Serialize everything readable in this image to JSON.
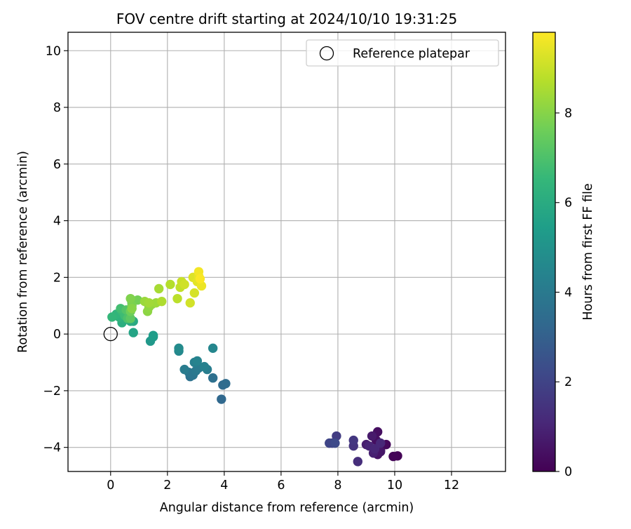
{
  "chart_data": {
    "type": "scatter",
    "title": "FOV centre drift starting at 2024/10/10 19:31:25",
    "xlabel": "Angular distance from reference (arcmin)",
    "ylabel": "Rotation from reference (arcmin)",
    "xlim": [
      -1.5,
      13.9
    ],
    "ylim": [
      -4.85,
      10.65
    ],
    "xticks": [
      "0",
      "2",
      "4",
      "6",
      "8",
      "10",
      "12"
    ],
    "xtick_values": [
      0,
      2,
      4,
      6,
      8,
      10,
      12
    ],
    "yticks": [
      "−4",
      "−2",
      "0",
      "2",
      "4",
      "6",
      "8",
      "10"
    ],
    "ytick_values": [
      -4,
      -2,
      0,
      2,
      4,
      6,
      8,
      10
    ],
    "grid": true,
    "legend": {
      "position": "top-right",
      "label": "Reference platepar"
    },
    "reference_point": {
      "x": 0,
      "y": 0
    },
    "colorbar": {
      "label": "Hours from first FF file",
      "range": [
        0,
        9.8
      ],
      "ticks": [
        "0",
        "2",
        "4",
        "6",
        "8"
      ],
      "tick_values": [
        0,
        2,
        4,
        6,
        8
      ],
      "colormap": [
        "#440154",
        "#482878",
        "#3e4989",
        "#31688e",
        "#26828e",
        "#1f9e89",
        "#35b779",
        "#6ece58",
        "#b5de2b",
        "#fde725"
      ]
    },
    "points": [
      {
        "x": 10.1,
        "y": -4.3,
        "c": 0.05
      },
      {
        "x": 9.95,
        "y": -4.32,
        "c": 0.1
      },
      {
        "x": 9.7,
        "y": -3.9,
        "c": 0.2
      },
      {
        "x": 9.5,
        "y": -4.1,
        "c": 0.3
      },
      {
        "x": 9.4,
        "y": -3.45,
        "c": 0.35
      },
      {
        "x": 9.35,
        "y": -3.75,
        "c": 0.4
      },
      {
        "x": 9.4,
        "y": -4.25,
        "c": 0.5
      },
      {
        "x": 9.5,
        "y": -4.15,
        "c": 0.6
      },
      {
        "x": 9.2,
        "y": -3.6,
        "c": 0.7
      },
      {
        "x": 9.0,
        "y": -3.9,
        "c": 0.8
      },
      {
        "x": 9.25,
        "y": -4.2,
        "c": 0.9
      },
      {
        "x": 9.1,
        "y": -3.95,
        "c": 1.0
      },
      {
        "x": 9.3,
        "y": -4.05,
        "c": 1.05
      },
      {
        "x": 9.5,
        "y": -3.85,
        "c": 1.1
      },
      {
        "x": 8.7,
        "y": -4.5,
        "c": 1.3
      },
      {
        "x": 8.55,
        "y": -3.95,
        "c": 1.5
      },
      {
        "x": 8.55,
        "y": -3.75,
        "c": 1.6
      },
      {
        "x": 7.95,
        "y": -3.6,
        "c": 1.75
      },
      {
        "x": 7.8,
        "y": -3.85,
        "c": 1.9
      },
      {
        "x": 7.7,
        "y": -3.85,
        "c": 2.05
      },
      {
        "x": 7.9,
        "y": -3.85,
        "c": 2.2
      },
      {
        "x": 3.9,
        "y": -2.3,
        "c": 3.3
      },
      {
        "x": 3.95,
        "y": -1.8,
        "c": 3.4
      },
      {
        "x": 4.05,
        "y": -1.75,
        "c": 3.45
      },
      {
        "x": 3.6,
        "y": -1.55,
        "c": 3.6
      },
      {
        "x": 2.8,
        "y": -1.5,
        "c": 3.7
      },
      {
        "x": 2.9,
        "y": -1.45,
        "c": 3.8
      },
      {
        "x": 2.75,
        "y": -1.35,
        "c": 3.85
      },
      {
        "x": 3.0,
        "y": -1.3,
        "c": 3.95
      },
      {
        "x": 3.1,
        "y": -1.2,
        "c": 4.0
      },
      {
        "x": 2.6,
        "y": -1.25,
        "c": 4.1
      },
      {
        "x": 3.4,
        "y": -1.25,
        "c": 4.15
      },
      {
        "x": 2.95,
        "y": -1.0,
        "c": 4.25
      },
      {
        "x": 3.3,
        "y": -1.15,
        "c": 4.3
      },
      {
        "x": 3.05,
        "y": -0.95,
        "c": 4.4
      },
      {
        "x": 3.6,
        "y": -0.5,
        "c": 4.5
      },
      {
        "x": 2.4,
        "y": -0.6,
        "c": 4.6
      },
      {
        "x": 2.4,
        "y": -0.5,
        "c": 4.7
      },
      {
        "x": 1.4,
        "y": -0.25,
        "c": 5.2
      },
      {
        "x": 1.5,
        "y": -0.1,
        "c": 5.3
      },
      {
        "x": 1.5,
        "y": -0.05,
        "c": 5.4
      },
      {
        "x": 0.8,
        "y": 0.05,
        "c": 5.7
      },
      {
        "x": 0.8,
        "y": 0.45,
        "c": 5.9
      },
      {
        "x": 0.7,
        "y": 0.45,
        "c": 6.0
      },
      {
        "x": 0.4,
        "y": 0.4,
        "c": 6.1
      },
      {
        "x": 0.45,
        "y": 0.55,
        "c": 6.2
      },
      {
        "x": 0.3,
        "y": 0.6,
        "c": 6.3
      },
      {
        "x": 0.2,
        "y": 0.7,
        "c": 6.4
      },
      {
        "x": 0.05,
        "y": 0.6,
        "c": 6.5
      },
      {
        "x": 0.4,
        "y": 0.8,
        "c": 6.6
      },
      {
        "x": 0.5,
        "y": 0.65,
        "c": 6.7
      },
      {
        "x": 0.35,
        "y": 0.9,
        "c": 6.8
      },
      {
        "x": 0.6,
        "y": 0.55,
        "c": 7.0
      },
      {
        "x": 0.55,
        "y": 0.85,
        "c": 7.1
      },
      {
        "x": 0.7,
        "y": 0.55,
        "c": 7.3
      },
      {
        "x": 0.75,
        "y": 1.1,
        "c": 7.5
      },
      {
        "x": 0.7,
        "y": 0.8,
        "c": 7.6
      },
      {
        "x": 0.95,
        "y": 1.2,
        "c": 7.7
      },
      {
        "x": 0.75,
        "y": 1.0,
        "c": 7.8
      },
      {
        "x": 0.7,
        "y": 1.25,
        "c": 7.9
      },
      {
        "x": 0.75,
        "y": 0.9,
        "c": 8.0
      },
      {
        "x": 1.3,
        "y": 0.8,
        "c": 8.1
      },
      {
        "x": 1.35,
        "y": 0.95,
        "c": 8.15
      },
      {
        "x": 1.45,
        "y": 1.05,
        "c": 8.2
      },
      {
        "x": 1.2,
        "y": 1.15,
        "c": 8.3
      },
      {
        "x": 1.6,
        "y": 1.1,
        "c": 8.35
      },
      {
        "x": 1.35,
        "y": 1.1,
        "c": 8.4
      },
      {
        "x": 1.7,
        "y": 1.6,
        "c": 8.5
      },
      {
        "x": 1.8,
        "y": 1.15,
        "c": 8.6
      },
      {
        "x": 2.1,
        "y": 1.75,
        "c": 8.7
      },
      {
        "x": 2.35,
        "y": 1.25,
        "c": 8.8
      },
      {
        "x": 2.45,
        "y": 1.65,
        "c": 8.9
      },
      {
        "x": 2.5,
        "y": 1.85,
        "c": 9.0
      },
      {
        "x": 2.6,
        "y": 1.75,
        "c": 9.1
      },
      {
        "x": 2.8,
        "y": 1.1,
        "c": 9.15
      },
      {
        "x": 2.95,
        "y": 1.45,
        "c": 9.2
      },
      {
        "x": 2.9,
        "y": 2.0,
        "c": 9.3
      },
      {
        "x": 3.05,
        "y": 1.85,
        "c": 9.4
      },
      {
        "x": 3.1,
        "y": 2.05,
        "c": 9.45
      },
      {
        "x": 3.2,
        "y": 1.7,
        "c": 9.55
      },
      {
        "x": 3.1,
        "y": 2.2,
        "c": 9.65
      },
      {
        "x": 3.15,
        "y": 1.95,
        "c": 9.75
      }
    ]
  }
}
